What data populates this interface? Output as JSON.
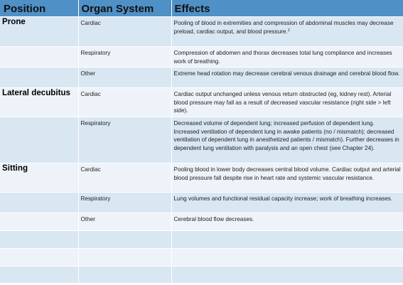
{
  "header": {
    "position": "Position",
    "organ_system": "Organ System",
    "effects": "Effects"
  },
  "rows": [
    {
      "position": "Prone",
      "system": "Cardiac",
      "effect": "Pooling of blood in extremities and compression of abdominal muscles may decrease preload, cardiac output, and blood pressure.",
      "sup": "2"
    },
    {
      "position": "",
      "system": "Respiratory",
      "effect": "Compression of abdomen and thorax decreases total lung compliance and increases work of breathing."
    },
    {
      "position": "",
      "system": "Other",
      "effect": "Extreme head rotation may decrease cerebral venous drainage and cerebral blood flow."
    },
    {
      "position": "Lateral decubitus",
      "system": "Cardiac",
      "effect": "Cardiac output unchanged unless venous return obstructed (eg, kidney rest). Arterial blood pressure may fall as a result of decreased vascular resistance (right side > left side)."
    },
    {
      "position": "",
      "system": "Respiratory",
      "effect": "Decreased volume of dependent lung; increased perfusion of dependent lung. Increased ventilation of dependent lung in awake patients (no / mismatch); decreased ventilation of dependent lung in anesthetized patients / mismatch). Further decreases in dependent lung ventilation with paralysis and an open chest (see Chapter 24)."
    },
    {
      "position": "Sitting",
      "system": "Cardiac",
      "effect": "Pooling blood in lower body decreases central blood volume. Cardiac output and arterial blood pressure fall despite rise in heart rate and systemic vascular resistance."
    },
    {
      "position": "",
      "system": "Respiratory",
      "effect": "Lung volumes and functional residual capacity increase; work of breathing increases."
    },
    {
      "position": "",
      "system": "Other",
      "effect": "Cerebral blood flow decreases."
    }
  ]
}
